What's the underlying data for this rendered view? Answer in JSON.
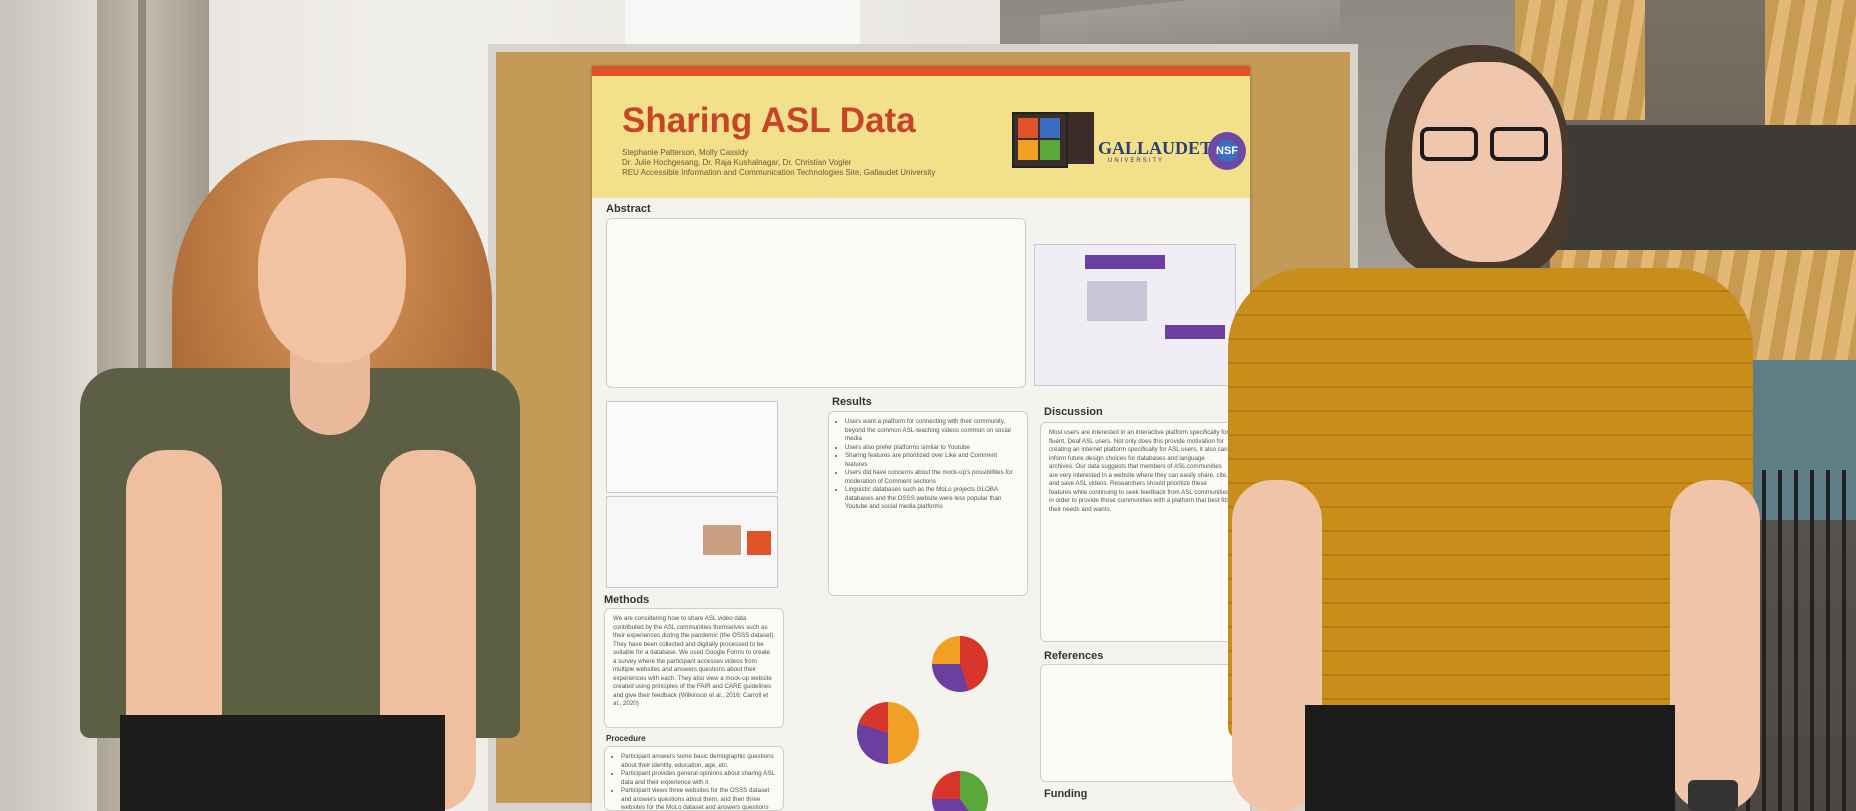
{
  "poster": {
    "title": "Sharing ASL Data",
    "authors_line1": "Stephanie Patterson, Molly Cassidy",
    "authors_line2": "Dr. Julie Hochgesang, Dr. Raja Kushalnagar, Dr. Christian Vogler",
    "authors_line3": "REU Accessible Information and Communication Technologies Site, Gallaudet University",
    "logo_text": "GALLAUDET",
    "logo_sub": "UNIVERSITY",
    "nsf_text": "NSF",
    "sections": {
      "abstract": "Abstract",
      "results": "Results",
      "discussion": "Discussion",
      "methods": "Methods",
      "references": "References",
      "funding": "Funding",
      "procedure": "Procedure"
    },
    "methods_text": "We are considering how to share ASL video data contributed by the ASL communities themselves such as their experiences during the pandemic (the OSSS dataset). They have been collected and digitally processed to be suitable for a database. We used Google Forms to create a survey where the participant accesses videos from multiple websites and answers questions about their experiences with each. They also view a mock-up website created using principles of the FAIR and CARE guidelines and give their feedback (Wilkinson et al., 2016; Carroll et al., 2020)",
    "discussion_text": "Most users are interested in an interactive platform specifically for fluent, Deaf ASL users. Not only does this provide motivation for creating an internet platform specifically for ASL users, it also can inform future design choices for databases and language archives. Our data suggests that members of ASL communities are very interested in a website where they can easily share, cite, and save ASL videos. Researchers should prioritize these features while continuing to seek feedback from ASL communities in order to provide those communities with a platform that best fits their needs and wants.",
    "results_items": [
      "Users want a platform for connecting with their community, beyond the common ASL-teaching videos common on social media",
      "Users also prefer platforms similar to Youtube",
      "Sharing features are prioritized over Like and Comment features",
      "Users did have concerns about the mock-up's possibilities for moderation of Comment sections",
      "Linguistic databases such as the MoLo projects GLOBA databases and the OSSS website were less popular than Youtube and social media platforms"
    ],
    "procedure_items": [
      "Participant answers some basic demographic questions about their identity, education, age, etc.",
      "Participant provides general opinions about sharing ASL data and their experience with it",
      "Participant views three websites for the OSSS dataset and answers questions about them, and then three websites for the MoLo dataset and answers questions about them"
    ]
  },
  "colors": {
    "banner": "#f3e08a",
    "title": "#c7442a",
    "board": "#c39a56",
    "shirt_left": "#5d5f45",
    "shirt_right": "#c98d1b"
  },
  "pie_charts": [
    {
      "slices": [
        0.45,
        0.3,
        0.25
      ],
      "colors": [
        "#d9362b",
        "#6a3fa0",
        "#f0a023"
      ]
    },
    {
      "slices": [
        0.5,
        0.3,
        0.2
      ],
      "colors": [
        "#f0a023",
        "#6a3fa0",
        "#d9362b"
      ]
    },
    {
      "slices": [
        0.4,
        0.35,
        0.25
      ],
      "colors": [
        "#5aa83c",
        "#6a3fa0",
        "#d9362b"
      ]
    }
  ]
}
